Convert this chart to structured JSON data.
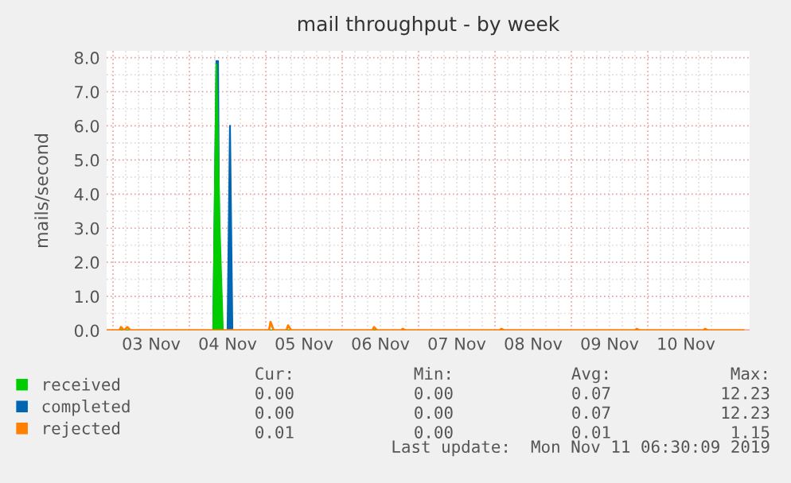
{
  "chart_data": {
    "type": "area",
    "title": "mail throughput - by week",
    "ylabel": "mails/second",
    "xlim": [
      "2019-11-02T22:00",
      "2019-11-11T08:00"
    ],
    "xticks": [
      {
        "value": "2019-11-03T12:00",
        "label": "03 Nov"
      },
      {
        "value": "2019-11-04T12:00",
        "label": "04 Nov"
      },
      {
        "value": "2019-11-05T12:00",
        "label": "05 Nov"
      },
      {
        "value": "2019-11-06T12:00",
        "label": "06 Nov"
      },
      {
        "value": "2019-11-07T12:00",
        "label": "07 Nov"
      },
      {
        "value": "2019-11-08T12:00",
        "label": "08 Nov"
      },
      {
        "value": "2019-11-09T12:00",
        "label": "09 Nov"
      },
      {
        "value": "2019-11-10T12:00",
        "label": "10 Nov"
      }
    ],
    "ylim": [
      0,
      8.2
    ],
    "yticks": [
      {
        "value": 0,
        "label": "0.0"
      },
      {
        "value": 1,
        "label": "1.0"
      },
      {
        "value": 2,
        "label": "2.0"
      },
      {
        "value": 3,
        "label": "3.0"
      },
      {
        "value": 4,
        "label": "4.0"
      },
      {
        "value": 5,
        "label": "5.0"
      },
      {
        "value": 6,
        "label": "6.0"
      },
      {
        "value": 7,
        "label": "7.0"
      },
      {
        "value": 8,
        "label": "8.0"
      }
    ],
    "grid": true,
    "legend": "bottom left",
    "series": [
      {
        "name": "received",
        "color": "#00cc00",
        "x": [
          "2019-11-02T22:00",
          "2019-11-04T07:30",
          "2019-11-04T08:30",
          "2019-11-04T09:30",
          "2019-11-04T10:30",
          "2019-11-11T06:00"
        ],
        "values": [
          0,
          0,
          7.8,
          3.0,
          0,
          0
        ]
      },
      {
        "name": "completed",
        "color": "#0066b3",
        "x": [
          "2019-11-02T22:00",
          "2019-11-04T07:30",
          "2019-11-04T08:30",
          "2019-11-04T09:00",
          "2019-11-04T09:30",
          "2019-11-04T12:00",
          "2019-11-04T12:45",
          "2019-11-04T13:30",
          "2019-11-11T06:00"
        ],
        "values": [
          0,
          0,
          7.9,
          7.9,
          0,
          0,
          6.0,
          0,
          0
        ]
      },
      {
        "name": "rejected",
        "color": "#ff8000",
        "type": "line",
        "x": [
          "2019-11-02T22:00",
          "2019-11-03T02:00",
          "2019-11-03T02:30",
          "2019-11-03T03:30",
          "2019-11-03T04:30",
          "2019-11-03T05:30",
          "2019-11-05T01:00",
          "2019-11-05T01:30",
          "2019-11-05T02:30",
          "2019-11-05T06:30",
          "2019-11-05T07:00",
          "2019-11-05T08:00",
          "2019-11-06T09:30",
          "2019-11-06T10:00",
          "2019-11-06T11:00",
          "2019-11-06T18:30",
          "2019-11-06T19:00",
          "2019-11-06T20:00",
          "2019-11-08T01:30",
          "2019-11-08T02:00",
          "2019-11-08T03:00",
          "2019-11-09T20:00",
          "2019-11-09T20:30",
          "2019-11-09T21:30",
          "2019-11-10T17:30",
          "2019-11-10T18:00",
          "2019-11-10T19:00",
          "2019-11-11T06:00"
        ],
        "values": [
          0,
          0,
          0.1,
          0,
          0.1,
          0,
          0,
          0.25,
          0,
          0,
          0.15,
          0,
          0,
          0.1,
          0,
          0,
          0.05,
          0,
          0,
          0.05,
          0,
          0,
          0.05,
          0,
          0,
          0.05,
          0,
          0
        ]
      }
    ],
    "annotations": [
      "Cur:",
      "Min:",
      "Avg:",
      "Max:",
      "0.00",
      "0.00",
      "0.07",
      "12.23",
      "0.00",
      "0.00",
      "0.07",
      "12.23",
      "0.01",
      "0.00",
      "0.01",
      "1.15",
      "Last update:  Mon Nov 11 06:30:09 2019"
    ]
  }
}
